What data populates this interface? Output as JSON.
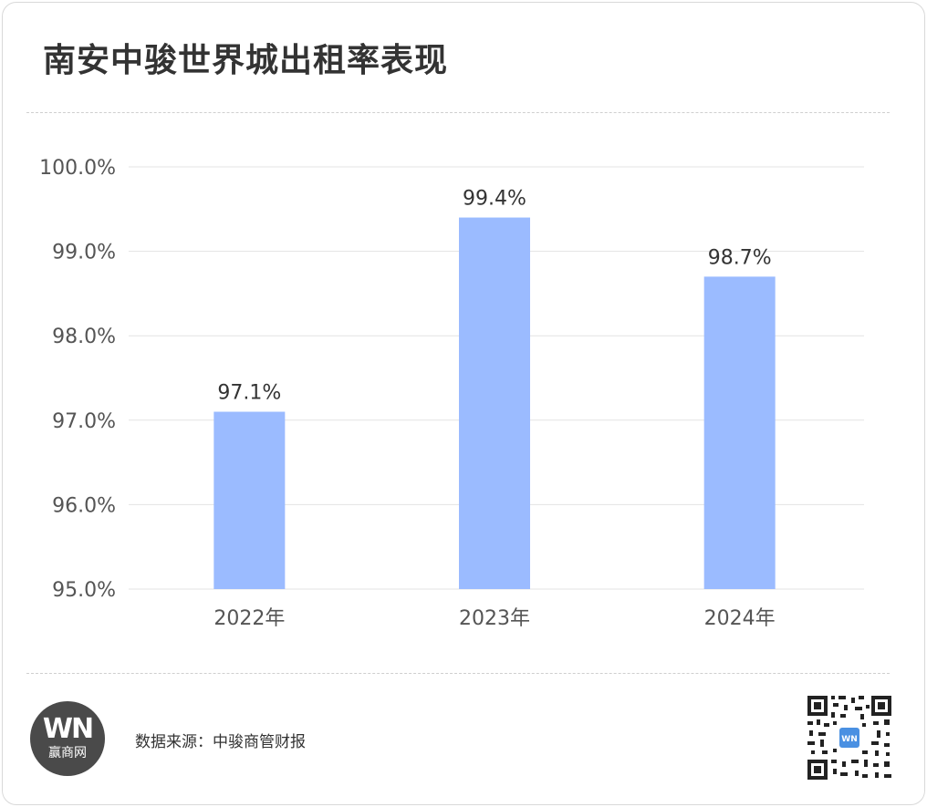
{
  "title": "南安中骏世界城出租率表现",
  "footer": {
    "logo_mark": "WN",
    "logo_name": "赢商网",
    "source": "数据来源：中骏商管财报",
    "qr_logo": "WN"
  },
  "colors": {
    "bar": "#9bbbff",
    "grid": "#e3e3e3",
    "text": "#333333",
    "axis_text": "#555555"
  },
  "chart_data": {
    "type": "bar",
    "title": "南安中骏世界城出租率表现",
    "categories": [
      "2022年",
      "2023年",
      "2024年"
    ],
    "values": [
      97.1,
      99.4,
      98.7
    ],
    "data_labels": [
      "97.1%",
      "99.4%",
      "98.7%"
    ],
    "y_ticks": [
      "95.0%",
      "96.0%",
      "97.0%",
      "98.0%",
      "99.0%",
      "100.0%"
    ],
    "ylim": [
      95,
      100
    ],
    "grid": true,
    "legend": "none",
    "xlabel": "",
    "ylabel": ""
  }
}
